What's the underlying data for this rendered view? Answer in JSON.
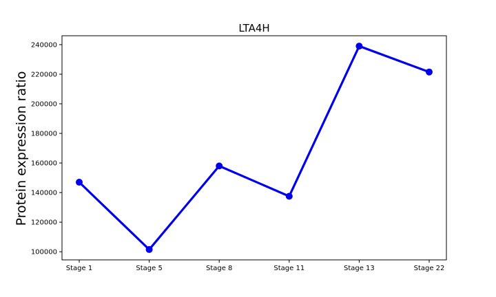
{
  "chart_data": {
    "type": "line",
    "title": "LTA4H",
    "xlabel": "",
    "ylabel": "Protein expression ratio",
    "categories": [
      "Stage 1",
      "Stage 5",
      "Stage 8",
      "Stage 11",
      "Stage 13",
      "Stage 22"
    ],
    "series": [
      {
        "values": [
          147000,
          101500,
          158000,
          137500,
          239000,
          221500
        ],
        "color": "#0000ee"
      }
    ],
    "yticks": [
      100000,
      120000,
      140000,
      160000,
      180000,
      200000,
      220000,
      240000
    ],
    "ylim": [
      94500,
      246000
    ],
    "grid": false,
    "legend": "none"
  }
}
